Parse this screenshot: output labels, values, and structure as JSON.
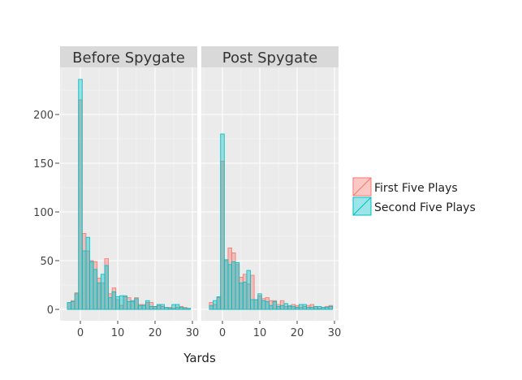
{
  "chart_data": {
    "type": "bar",
    "subtype": "histogram-overlaid-faceted",
    "xlabel": "Yards",
    "ylabel": "",
    "x_ticks": [
      0,
      10,
      20,
      30
    ],
    "y_ticks": [
      0,
      50,
      100,
      150,
      200
    ],
    "ylim": [
      -10,
      245
    ],
    "xlim": [
      -5.5,
      31
    ],
    "grid": true,
    "legend_position": "right",
    "x": [
      -3,
      -2,
      -1,
      0,
      1,
      2,
      3,
      4,
      5,
      6,
      7,
      8,
      9,
      10,
      11,
      12,
      13,
      14,
      15,
      16,
      17,
      18,
      19,
      20,
      21,
      22,
      23,
      24,
      25,
      26,
      27,
      28,
      29
    ],
    "series_colors": {
      "First Five Plays": "#F8766D",
      "Second Five Plays": "#00BFC4"
    },
    "facets": [
      {
        "title": "Before Spygate",
        "series": [
          {
            "name": "First Five Plays",
            "values": [
              7,
              9,
              17,
              215,
              78,
              60,
              50,
              49,
              32,
              27,
              52,
              16,
              22,
              10,
              4,
              13,
              12,
              8,
              12,
              5,
              5,
              7,
              7,
              3,
              4,
              3,
              2,
              2,
              1,
              2,
              3,
              2,
              1
            ]
          },
          {
            "name": "Second Five Plays",
            "values": [
              7,
              8,
              16,
              236,
              60,
              74,
              49,
              41,
              27,
              36,
              45,
              12,
              18,
              13,
              14,
              14,
              8,
              9,
              11,
              4,
              4,
              9,
              3,
              3,
              5,
              5,
              2,
              1,
              5,
              5,
              2,
              1,
              1
            ]
          }
        ]
      },
      {
        "title": "Post Spygate",
        "series": [
          {
            "name": "First Five Plays",
            "values": [
              7,
              5,
              12,
              152,
              50,
              63,
              58,
              46,
              33,
              36,
              26,
              35,
              10,
              14,
              11,
              12,
              9,
              9,
              5,
              9,
              3,
              3,
              5,
              4,
              2,
              3,
              4,
              5,
              3,
              1,
              2,
              3,
              4
            ]
          },
          {
            "name": "Second Five Plays",
            "values": [
              4,
              9,
              13,
              180,
              51,
              46,
              49,
              48,
              27,
              28,
              40,
              10,
              10,
              16,
              9,
              8,
              4,
              8,
              3,
              4,
              6,
              4,
              3,
              2,
              5,
              5,
              2,
              2,
              3,
              3,
              2,
              2,
              3
            ]
          }
        ]
      }
    ],
    "legend": [
      "First Five Plays",
      "Second Five Plays"
    ]
  }
}
